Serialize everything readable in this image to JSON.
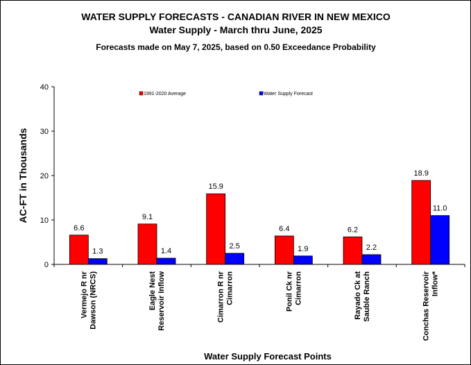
{
  "chart_data": {
    "type": "bar",
    "title": "WATER SUPPLY FORECASTS - CANADIAN RIVER IN NEW MEXICO",
    "subtitle": "Water Supply - March thru June, 2025",
    "subtitle2": "Forecasts made on May 7, 2025, based on 0.50 Exceedance Probability",
    "xlabel": "Water Supply  Forecast  Points",
    "ylabel": "AC-FT in Thousands",
    "ylim": [
      0,
      40
    ],
    "yticks": [
      "0",
      "10",
      "20",
      "30",
      "40"
    ],
    "grid": false,
    "legend_position": "top",
    "categories": [
      [
        "Vermejo  R nr",
        "Dawson (NRCS)"
      ],
      [
        "Eagle Nest",
        "Reservoir Inflow"
      ],
      [
        "Cimarron R nr",
        "Cimarron"
      ],
      [
        "Ponil Ck nr",
        "Cimarron"
      ],
      [
        "Rayado Ck at",
        "Sauble Ranch"
      ],
      [
        "Conchas Reservoir",
        "Inflow*"
      ]
    ],
    "series": [
      {
        "name": "1991-2020 Average",
        "color": "#ff0000",
        "values": [
          6.6,
          9.1,
          15.9,
          6.4,
          6.2,
          18.9
        ],
        "labels": [
          "6.6",
          "9.1",
          "15.9",
          "6.4",
          "6.2",
          "18.9"
        ]
      },
      {
        "name": "Water Supply Forecast",
        "color": "#0000ff",
        "values": [
          1.3,
          1.4,
          2.5,
          1.9,
          2.2,
          11.0
        ],
        "labels": [
          "1.3",
          "1.4",
          "2.5",
          "1.9",
          "2.2",
          "11.0"
        ]
      }
    ]
  }
}
